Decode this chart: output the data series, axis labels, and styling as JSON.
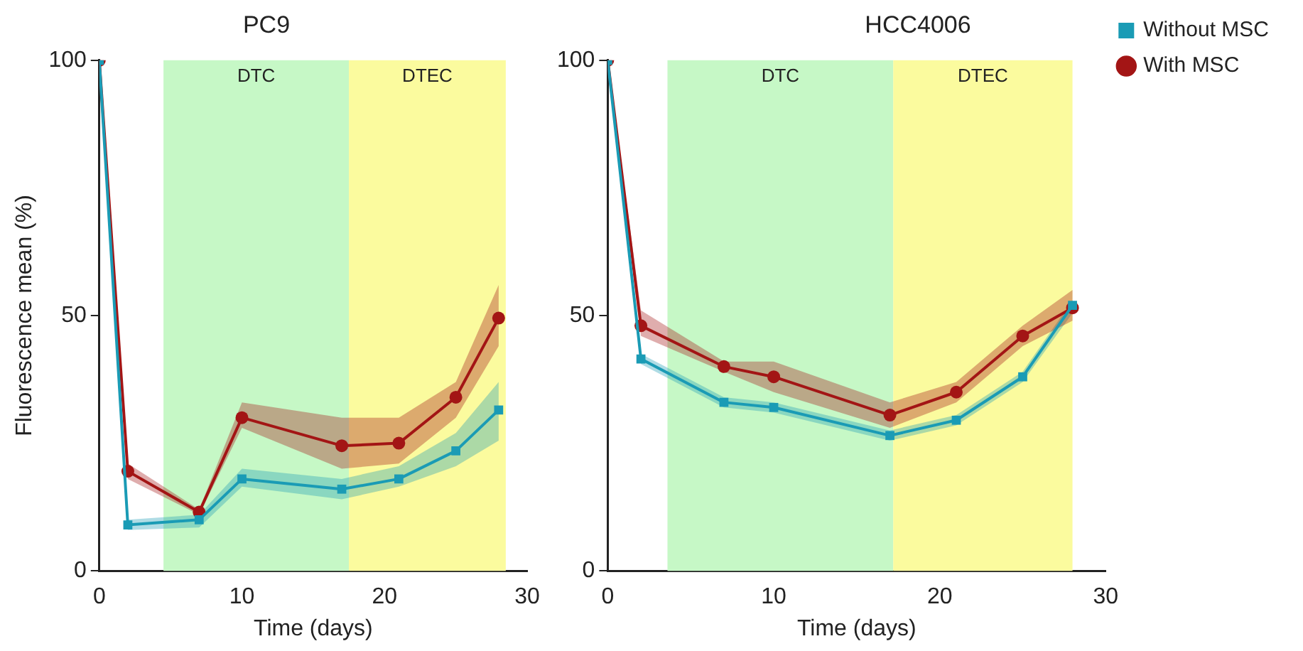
{
  "chart_data": [
    {
      "type": "line",
      "title": "PC9",
      "xlabel": "Time (days)",
      "ylabel": "Fluorescence mean (%)",
      "x": [
        0,
        2,
        7,
        10,
        17,
        21,
        25,
        28
      ],
      "xlim": [
        0,
        30
      ],
      "xticks": [
        0,
        10,
        20,
        30
      ],
      "ylim": [
        0,
        100
      ],
      "yticks": [
        0,
        50,
        100
      ],
      "grid": false,
      "legend": false,
      "bands": [
        {
          "axis": "x",
          "from": 4.5,
          "to": 17.5,
          "label": "DTC",
          "color": "#c6f8c6"
        },
        {
          "axis": "x",
          "from": 17.5,
          "to": 28.5,
          "label": "DTEC",
          "color": "#fbfb9e"
        }
      ],
      "series": [
        {
          "color": "#1a9bb5",
          "marker": "square",
          "values": [
            100,
            9,
            10,
            18,
            16,
            18,
            23.5,
            31.5
          ],
          "lower": [
            98,
            8,
            8.5,
            16.5,
            14,
            16.5,
            20.5,
            25.5
          ],
          "upper": [
            100,
            10,
            11,
            20,
            18,
            20.5,
            27,
            37
          ]
        },
        {
          "color": "#a31515",
          "marker": "circle",
          "values": [
            100,
            19.5,
            11.5,
            30,
            24.5,
            25,
            34,
            49.5
          ],
          "lower": [
            98,
            18,
            11,
            28,
            20,
            21,
            30,
            44
          ],
          "upper": [
            100,
            21,
            12,
            33,
            30,
            30,
            37,
            56
          ]
        }
      ]
    },
    {
      "type": "line",
      "title": "HCC4006",
      "xlabel": "Time (days)",
      "x": [
        0,
        2,
        7,
        10,
        17,
        21,
        25,
        28
      ],
      "xlim": [
        0,
        30
      ],
      "xticks": [
        0,
        10,
        20,
        30
      ],
      "ylim": [
        0,
        100
      ],
      "yticks": [
        0,
        50,
        100
      ],
      "grid": false,
      "legend": "top right",
      "bands": [
        {
          "axis": "x",
          "from": 3.6,
          "to": 17.2,
          "label": "DTC",
          "color": "#c6f8c6"
        },
        {
          "axis": "x",
          "from": 17.2,
          "to": 28,
          "label": "DTEC",
          "color": "#fbfb9e"
        }
      ],
      "series": [
        {
          "name": "Without MSC",
          "color": "#1a9bb5",
          "marker": "square",
          "values": [
            100,
            41.5,
            33,
            32,
            26.5,
            29.5,
            38,
            52
          ],
          "lower": [
            99,
            40.5,
            32,
            31,
            25.5,
            28.5,
            37,
            50.5
          ],
          "upper": [
            100,
            42.5,
            34,
            33,
            27.5,
            30.5,
            39,
            53
          ]
        },
        {
          "name": "With MSC",
          "color": "#a31515",
          "marker": "circle",
          "values": [
            100,
            48,
            40,
            38,
            30.5,
            35,
            46,
            51.5
          ],
          "lower": [
            98,
            46,
            39,
            35,
            28,
            33,
            44,
            49
          ],
          "upper": [
            100,
            51,
            41,
            41,
            33,
            37,
            48,
            55
          ]
        }
      ]
    }
  ]
}
